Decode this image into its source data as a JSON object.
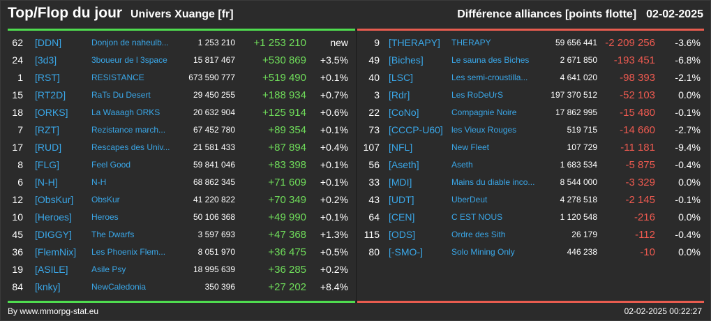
{
  "header": {
    "title": "Top/Flop du jour",
    "universe": "Univers Xuange [fr]",
    "context": "Différence alliances [points flotte]",
    "date": "02-02-2025"
  },
  "top": [
    {
      "rank": "62",
      "tag": "[DDN]",
      "name": "Donjon de naheulb...",
      "points": "1 253 210",
      "diff": "+1 253 210",
      "pct": "new"
    },
    {
      "rank": "24",
      "tag": "[3d3]",
      "name": "3boueur de l 3space",
      "points": "15 817 467",
      "diff": "+530 869",
      "pct": "+3.5%"
    },
    {
      "rank": "1",
      "tag": "[RST]",
      "name": "RESISTANCE",
      "points": "673 590 777",
      "diff": "+519 490",
      "pct": "+0.1%"
    },
    {
      "rank": "15",
      "tag": "[RT2D]",
      "name": "RaTs Du Desert",
      "points": "29 450 255",
      "diff": "+188 934",
      "pct": "+0.7%"
    },
    {
      "rank": "18",
      "tag": "[ORKS]",
      "name": "La Waaagh ORKS",
      "points": "20 632 904",
      "diff": "+125 914",
      "pct": "+0.6%"
    },
    {
      "rank": "7",
      "tag": "[RZT]",
      "name": "Rezistance march...",
      "points": "67 452 780",
      "diff": "+89 354",
      "pct": "+0.1%"
    },
    {
      "rank": "17",
      "tag": "[RUD]",
      "name": "Rescapes des Univ...",
      "points": "21 581 433",
      "diff": "+87 894",
      "pct": "+0.4%"
    },
    {
      "rank": "8",
      "tag": "[FLG]",
      "name": "Feel Good",
      "points": "59 841 046",
      "diff": "+83 398",
      "pct": "+0.1%"
    },
    {
      "rank": "6",
      "tag": "[N-H]",
      "name": "N-H",
      "points": "68 862 345",
      "diff": "+71 609",
      "pct": "+0.1%"
    },
    {
      "rank": "12",
      "tag": "[ObsKur]",
      "name": "ObsKur",
      "points": "41 220 822",
      "diff": "+70 349",
      "pct": "+0.2%"
    },
    {
      "rank": "10",
      "tag": "[Heroes]",
      "name": "Heroes",
      "points": "50 106 368",
      "diff": "+49 990",
      "pct": "+0.1%"
    },
    {
      "rank": "45",
      "tag": "[DIGGY]",
      "name": "The Dwarfs",
      "points": "3 597 693",
      "diff": "+47 368",
      "pct": "+1.3%"
    },
    {
      "rank": "36",
      "tag": "[FlemNix]",
      "name": "Les Phoenix Flem...",
      "points": "8 051 970",
      "diff": "+36 475",
      "pct": "+0.5%"
    },
    {
      "rank": "19",
      "tag": "[ASILE]",
      "name": "Asile Psy",
      "points": "18 995 639",
      "diff": "+36 285",
      "pct": "+0.2%"
    },
    {
      "rank": "84",
      "tag": "[knky]",
      "name": "NewCaledonia",
      "points": "350 396",
      "diff": "+27 202",
      "pct": "+8.4%"
    }
  ],
  "flop": [
    {
      "rank": "9",
      "tag": "[THERAPY]",
      "name": "THERAPY",
      "points": "59 656 441",
      "diff": "-2 209 256",
      "pct": "-3.6%"
    },
    {
      "rank": "49",
      "tag": "[Biches]",
      "name": "Le sauna des Biches",
      "points": "2 671 850",
      "diff": "-193 451",
      "pct": "-6.8%"
    },
    {
      "rank": "40",
      "tag": "[LSC]",
      "name": "Les semi-croustilla...",
      "points": "4 641 020",
      "diff": "-98 393",
      "pct": "-2.1%"
    },
    {
      "rank": "3",
      "tag": "[Rdr]",
      "name": "Les RoDeUrS",
      "points": "197 370 512",
      "diff": "-52 103",
      "pct": "0.0%"
    },
    {
      "rank": "22",
      "tag": "[CoNo]",
      "name": "Compagnie Noire",
      "points": "17 862 995",
      "diff": "-15 480",
      "pct": "-0.1%"
    },
    {
      "rank": "73",
      "tag": "[CCCP-U60]",
      "name": "les Vieux Rouges",
      "points": "519 715",
      "diff": "-14 660",
      "pct": "-2.7%"
    },
    {
      "rank": "107",
      "tag": "[NFL]",
      "name": "New Fleet",
      "points": "107 729",
      "diff": "-11 181",
      "pct": "-9.4%"
    },
    {
      "rank": "56",
      "tag": "[Aseth]",
      "name": "Aseth",
      "points": "1 683 534",
      "diff": "-5 875",
      "pct": "-0.4%"
    },
    {
      "rank": "33",
      "tag": "[MDI]",
      "name": "Mains du diable inco...",
      "points": "8 544 000",
      "diff": "-3 329",
      "pct": "0.0%"
    },
    {
      "rank": "43",
      "tag": "[UDT]",
      "name": "UberDeut",
      "points": "4 278 518",
      "diff": "-2 145",
      "pct": "-0.1%"
    },
    {
      "rank": "64",
      "tag": "[CEN]",
      "name": "C EST NOUS",
      "points": "1 120 548",
      "diff": "-216",
      "pct": "0.0%"
    },
    {
      "rank": "115",
      "tag": "[ODS]",
      "name": "Ordre des Sith",
      "points": "26 179",
      "diff": "-112",
      "pct": "-0.4%"
    },
    {
      "rank": "80",
      "tag": "[-SMO-]",
      "name": "Solo Mining Only",
      "points": "446 238",
      "diff": "-10",
      "pct": "0.0%"
    }
  ],
  "footer": {
    "source": "By www.mmorpg-stat.eu",
    "timestamp": "02-02-2025 00:22:27"
  },
  "colors": {
    "background": "#2b2b2b",
    "tag": "#3aa7e8",
    "positive": "#6fdc5a",
    "negative": "#ef5a50",
    "top_border": "#4fdc4f",
    "flop_border": "#e85c4f"
  }
}
